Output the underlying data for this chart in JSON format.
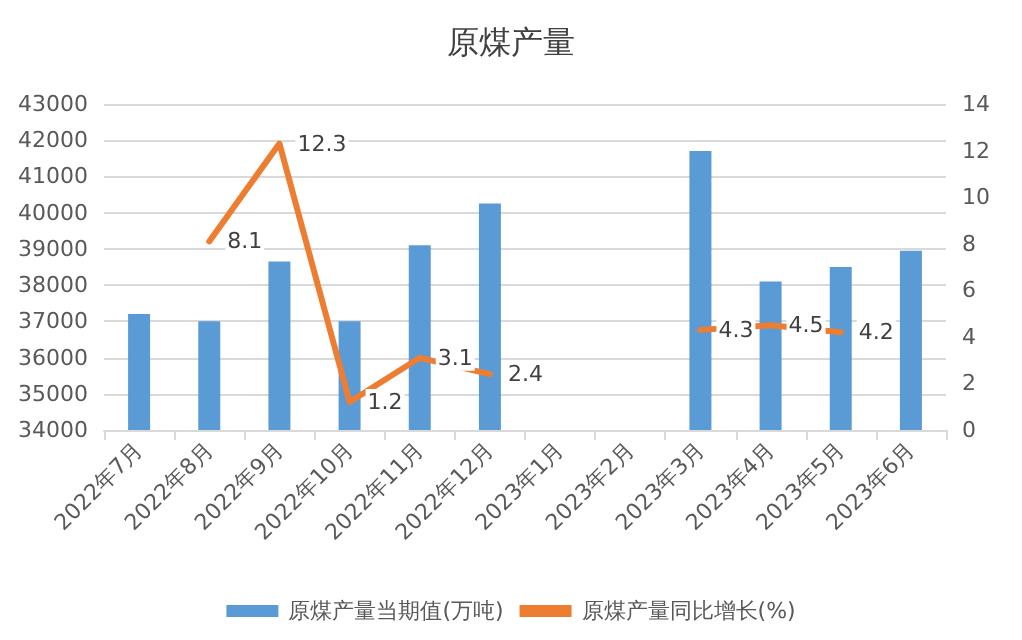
{
  "chart_data": {
    "type": "bar",
    "title": "原煤产量",
    "categories": [
      "2022年7月",
      "2022年8月",
      "2022年9月",
      "2022年10月",
      "2022年11月",
      "2022年12月",
      "2023年1月",
      "2023年2月",
      "2023年3月",
      "2023年4月",
      "2023年5月",
      "2023年6月"
    ],
    "series": [
      {
        "name": "原煤产量当期值(万吨)",
        "color": "#5b9bd5",
        "values": [
          37200,
          37000,
          38650,
          37000,
          39100,
          40250,
          null,
          null,
          41700,
          38100,
          38500,
          38950
        ]
      },
      {
        "name": "原煤产量同比增长(%)",
        "type": "line",
        "axis": "y2",
        "color": "#ed7d31",
        "values": [
          null,
          8.1,
          12.3,
          1.2,
          3.1,
          2.4,
          null,
          null,
          4.3,
          4.5,
          4.2,
          null
        ],
        "data_labels": true
      }
    ],
    "ylim": [
      34000,
      43000
    ],
    "yticks": [
      34000,
      35000,
      36000,
      37000,
      38000,
      39000,
      40000,
      41000,
      42000,
      43000
    ],
    "y2lim": [
      0,
      14
    ],
    "y2ticks": [
      0,
      2,
      4,
      6,
      8,
      10,
      12,
      14
    ],
    "grid": "y",
    "legend": "bottom",
    "marker": "none"
  }
}
